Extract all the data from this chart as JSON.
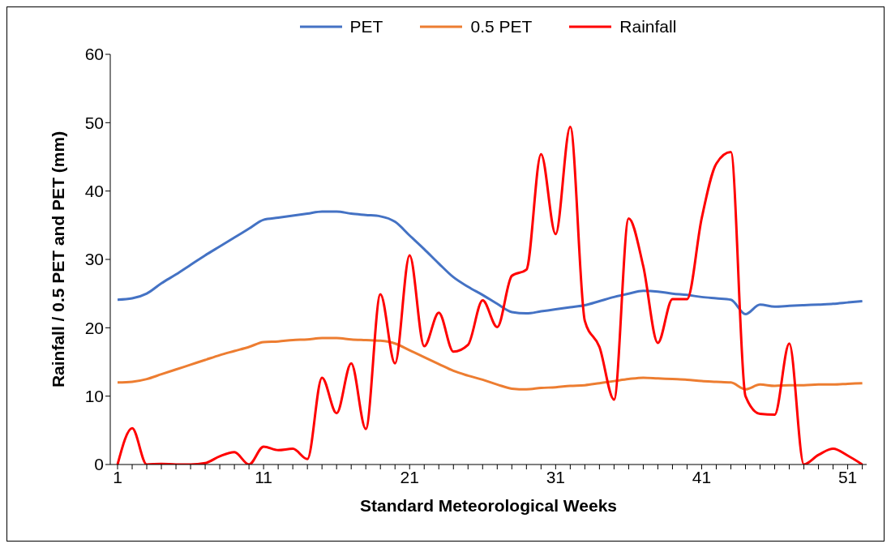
{
  "chart_data": {
    "type": "line",
    "xlabel": "Standard Meteorological Weeks",
    "ylabel": "Rainfall / 0.5 PET  and PET (mm)",
    "x": [
      1,
      2,
      3,
      4,
      5,
      6,
      7,
      8,
      9,
      10,
      11,
      12,
      13,
      14,
      15,
      16,
      17,
      18,
      19,
      20,
      21,
      22,
      23,
      24,
      25,
      26,
      27,
      28,
      29,
      30,
      31,
      32,
      33,
      34,
      35,
      36,
      37,
      38,
      39,
      40,
      41,
      42,
      43,
      44,
      45,
      46,
      47,
      48,
      49,
      50,
      51,
      52
    ],
    "series": [
      {
        "name": "PET",
        "color": "#4472c4",
        "values": [
          24.1,
          24.3,
          25,
          26.5,
          27.8,
          29.2,
          30.6,
          31.9,
          33.2,
          34.5,
          35.8,
          36.1,
          36.4,
          36.7,
          37,
          37,
          36.7,
          36.5,
          36.3,
          35.5,
          33.5,
          31.5,
          29.4,
          27.4,
          26,
          24.8,
          23.5,
          22.3,
          22.1,
          22.4,
          22.7,
          23,
          23.3,
          23.9,
          24.5,
          25,
          25.4,
          25.3,
          25,
          24.8,
          24.5,
          24.3,
          24.1,
          22,
          23.4,
          23.1,
          23.2,
          23.3,
          23.4,
          23.5,
          23.7,
          23.9
        ]
      },
      {
        "name": "0.5 PET",
        "color": "#ed7d31",
        "values": [
          12,
          12.1,
          12.5,
          13.2,
          13.9,
          14.6,
          15.3,
          16,
          16.6,
          17.2,
          17.9,
          18,
          18.2,
          18.3,
          18.5,
          18.5,
          18.3,
          18.2,
          18.1,
          17.7,
          16.7,
          15.7,
          14.7,
          13.7,
          13,
          12.4,
          11.7,
          11.1,
          11,
          11.2,
          11.3,
          11.5,
          11.6,
          11.9,
          12.2,
          12.5,
          12.7,
          12.6,
          12.5,
          12.4,
          12.2,
          12.1,
          12,
          11,
          11.7,
          11.5,
          11.6,
          11.6,
          11.7,
          11.7,
          11.8,
          11.9
        ]
      },
      {
        "name": "Rainfall",
        "color": "#ff0000",
        "values": [
          0,
          5.3,
          0,
          0.1,
          0,
          0,
          0.2,
          1.2,
          1.8,
          0,
          2.6,
          2.1,
          2.3,
          0.8,
          12.7,
          7.5,
          14.8,
          5.2,
          24.9,
          14.8,
          30.6,
          17.3,
          22.2,
          16.5,
          17.5,
          24,
          20.1,
          27.6,
          28.5,
          45.4,
          33.7,
          49.4,
          21,
          17.2,
          9.5,
          36,
          29,
          17.8,
          24.2,
          24.2,
          36,
          44,
          45.7,
          10,
          7.4,
          7.3,
          17.7,
          0,
          1.4,
          2.3,
          1.3,
          0
        ]
      }
    ],
    "xlim": [
      0.5,
      52.3
    ],
    "xticks": [
      1,
      {
        "value": 2,
        "label": null
      },
      {
        "value": 3,
        "label": null
      },
      {
        "value": 4,
        "label": null
      },
      {
        "value": 5,
        "label": null
      },
      {
        "value": 6,
        "label": null
      },
      {
        "value": 7,
        "label": null
      },
      {
        "value": 8,
        "label": null
      },
      {
        "value": 9,
        "label": null
      },
      {
        "value": 10,
        "label": null
      },
      11,
      {
        "value": 12,
        "label": null
      },
      {
        "value": 13,
        "label": null
      },
      {
        "value": 14,
        "label": null
      },
      {
        "value": 15,
        "label": null
      },
      {
        "value": 16,
        "label": null
      },
      {
        "value": 17,
        "label": null
      },
      {
        "value": 18,
        "label": null
      },
      {
        "value": 19,
        "label": null
      },
      {
        "value": 20,
        "label": null
      },
      21,
      {
        "value": 22,
        "label": null
      },
      {
        "value": 23,
        "label": null
      },
      {
        "value": 24,
        "label": null
      },
      {
        "value": 25,
        "label": null
      },
      {
        "value": 26,
        "label": null
      },
      {
        "value": 27,
        "label": null
      },
      {
        "value": 28,
        "label": null
      },
      {
        "value": 29,
        "label": null
      },
      {
        "value": 30,
        "label": null
      },
      31,
      {
        "value": 32,
        "label": null
      },
      {
        "value": 33,
        "label": null
      },
      {
        "value": 34,
        "label": null
      },
      {
        "value": 35,
        "label": null
      },
      {
        "value": 36,
        "label": null
      },
      {
        "value": 37,
        "label": null
      },
      {
        "value": 38,
        "label": null
      },
      {
        "value": 39,
        "label": null
      },
      {
        "value": 40,
        "label": null
      },
      41,
      {
        "value": 42,
        "label": null
      },
      {
        "value": 43,
        "label": null
      },
      {
        "value": 44,
        "label": null
      },
      {
        "value": 45,
        "label": null
      },
      {
        "value": 46,
        "label": null
      },
      {
        "value": 47,
        "label": null
      },
      {
        "value": 48,
        "label": null
      },
      {
        "value": 49,
        "label": null
      },
      {
        "value": 50,
        "label": null
      },
      51,
      {
        "value": 52,
        "label": null
      }
    ],
    "ylim": [
      0,
      60
    ],
    "yticks": [
      0,
      10,
      20,
      30,
      40,
      50,
      60
    ],
    "grid": false,
    "legend": "top",
    "marker": "none",
    "line_style": "solid"
  }
}
